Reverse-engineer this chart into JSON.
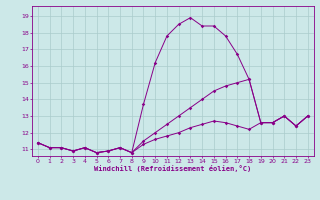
{
  "xlabel": "Windchill (Refroidissement éolien,°C)",
  "background_color": "#cce8e8",
  "grid_color": "#aacccc",
  "line_color": "#880088",
  "x_ticks": [
    0,
    1,
    2,
    3,
    4,
    5,
    6,
    7,
    8,
    9,
    10,
    11,
    12,
    13,
    14,
    15,
    16,
    17,
    18,
    19,
    20,
    21,
    22,
    23
  ],
  "y_ticks": [
    11,
    12,
    13,
    14,
    15,
    16,
    17,
    18,
    19
  ],
  "ylim": [
    10.6,
    19.6
  ],
  "xlim": [
    -0.5,
    23.5
  ],
  "series1": [
    11.4,
    11.1,
    11.1,
    10.9,
    11.1,
    10.8,
    10.9,
    11.1,
    10.8,
    13.7,
    16.2,
    17.8,
    18.5,
    18.9,
    18.4,
    18.4,
    17.8,
    16.7,
    15.2,
    12.6,
    12.6,
    13.0,
    12.4,
    13.0
  ],
  "series2": [
    11.4,
    11.1,
    11.1,
    10.9,
    11.1,
    10.8,
    10.9,
    11.1,
    10.8,
    11.5,
    12.0,
    12.5,
    13.0,
    13.5,
    14.0,
    14.5,
    14.8,
    15.0,
    15.2,
    12.6,
    12.6,
    13.0,
    12.4,
    13.0
  ],
  "series3": [
    11.4,
    11.1,
    11.1,
    10.9,
    11.1,
    10.8,
    10.9,
    11.1,
    10.8,
    11.3,
    11.6,
    11.8,
    12.0,
    12.3,
    12.5,
    12.7,
    12.6,
    12.4,
    12.2,
    12.6,
    12.6,
    13.0,
    12.4,
    13.0
  ],
  "tick_fontsize": 4.5,
  "xlabel_fontsize": 5.0
}
